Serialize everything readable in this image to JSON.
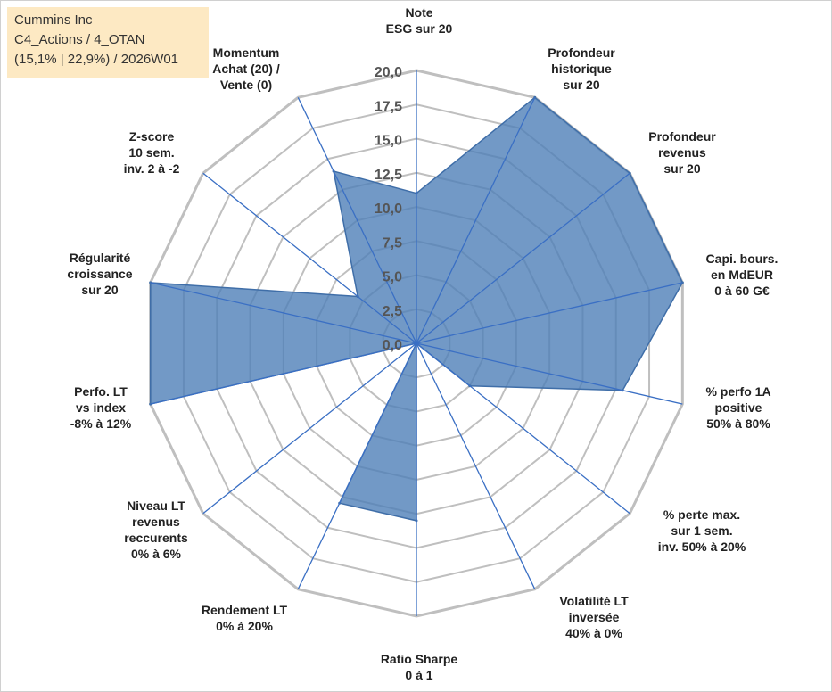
{
  "header": {
    "company": "Cummins Inc",
    "category": "C4_Actions / 4_OTAN",
    "stats": "(15,1% | 22,9%) / 2026W01"
  },
  "colors": {
    "fill": "#4f7fb8",
    "stroke": "#3f6ea8",
    "spokes": "#3a6fc4",
    "grid": "#bfbfbf",
    "text": "#222222"
  },
  "chart_data": {
    "type": "radar",
    "r_range": [
      0,
      20
    ],
    "r_ticks": [
      "0,0",
      "2,5",
      "5,0",
      "7,5",
      "10,0",
      "12,5",
      "15,0",
      "17,5",
      "20,0"
    ],
    "grid": true,
    "axes": [
      {
        "name": "note-esg",
        "label": [
          "Note",
          "ESG sur 20"
        ]
      },
      {
        "name": "profondeur-historique",
        "label": [
          "Profondeur",
          "historique",
          "sur 20"
        ]
      },
      {
        "name": "profondeur-revenus",
        "label": [
          "Profondeur",
          "revenus",
          "sur 20"
        ]
      },
      {
        "name": "capi-bours",
        "label": [
          "Capi. bours.",
          "en MdEUR",
          "0 à 60 G€"
        ]
      },
      {
        "name": "perfo-1a",
        "label": [
          "% perfo 1A",
          "positive",
          "50% à 80%"
        ]
      },
      {
        "name": "perte-max",
        "label": [
          "% perte max.",
          "sur 1 sem.",
          "inv. 50% à 20%"
        ]
      },
      {
        "name": "volatilite-lt",
        "label": [
          "Volatilité LT",
          "inversée",
          "40% à 0%"
        ]
      },
      {
        "name": "ratio-sharpe",
        "label": [
          "Ratio Sharpe",
          "0 à 1"
        ]
      },
      {
        "name": "rendement-lt",
        "label": [
          "Rendement LT",
          "0% à 20%"
        ]
      },
      {
        "name": "niveau-lt-revenus",
        "label": [
          "Niveau LT",
          "revenus",
          "reccurents",
          "0% à 6%"
        ]
      },
      {
        "name": "perfo-lt-vs-index",
        "label": [
          "Perfo. LT",
          "vs index",
          "-8% à 12%"
        ]
      },
      {
        "name": "regularite-croissance",
        "label": [
          "Régularité",
          "croissance",
          "sur 20"
        ]
      },
      {
        "name": "z-score",
        "label": [
          "Z-score",
          "10 sem.",
          "inv. 2 à -2"
        ]
      },
      {
        "name": "momentum",
        "label": [
          "Momentum",
          "Achat (20) /",
          "Vente (0)"
        ]
      }
    ],
    "series": [
      {
        "name": "Cummins Inc",
        "values": [
          11.0,
          20.0,
          20.0,
          20.0,
          15.5,
          5.0,
          0.0,
          13.0,
          13.0,
          0.0,
          20.0,
          20.0,
          5.5,
          14.0
        ]
      }
    ]
  }
}
